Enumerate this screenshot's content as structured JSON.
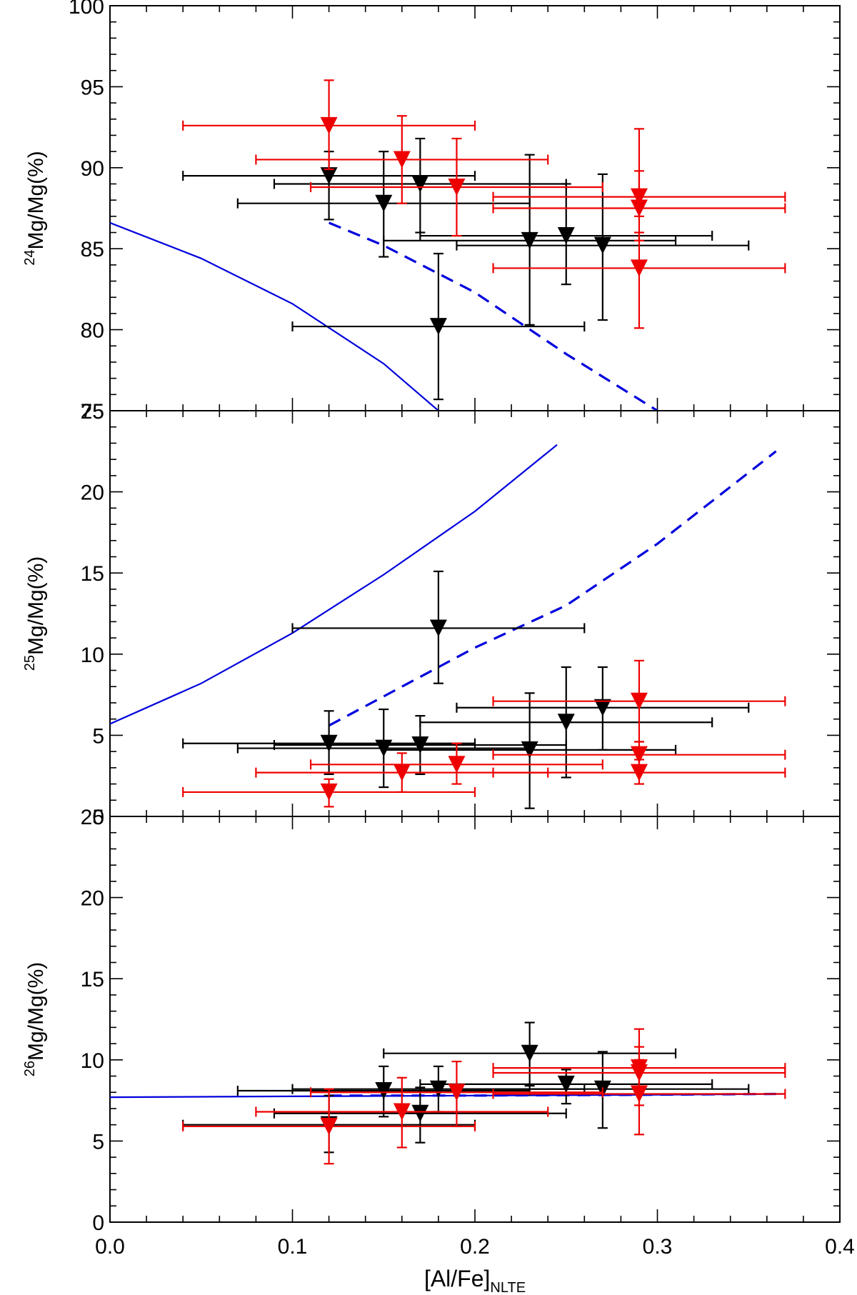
{
  "chart_data": {
    "type": "scatter",
    "xlabel": "[Al/Fe]",
    "xlabel_sub": "NLTE",
    "xlim": [
      0.0,
      0.4
    ],
    "x_ticks": [
      "0.0",
      "0.1",
      "0.2",
      "0.3",
      "0.4"
    ],
    "x_tick_values": [
      0.0,
      0.1,
      0.2,
      0.3,
      0.4
    ],
    "colors": {
      "black_series": "#000000",
      "red_series": "#ee0000",
      "model": "#0000dd"
    },
    "panels": [
      {
        "id": "mg24",
        "ylabel_sup": "24",
        "ylabel": "Mg/Mg(%)",
        "ylim": [
          75,
          100
        ],
        "y_ticks": [
          "75",
          "80",
          "85",
          "90",
          "95",
          "100"
        ],
        "y_tick_values": [
          75,
          80,
          85,
          90,
          95,
          100
        ],
        "series": [
          {
            "name": "black",
            "color": "#000000",
            "points": [
              {
                "x": 0.12,
                "y": 89.5,
                "xerr": [
                  0.04,
                  0.2
                ],
                "yerr": [
                  86.8,
                  91.0
                ]
              },
              {
                "x": 0.15,
                "y": 87.8,
                "xerr": [
                  0.07,
                  0.23
                ],
                "yerr": [
                  84.5,
                  91.0
                ]
              },
              {
                "x": 0.17,
                "y": 89.0,
                "xerr": [
                  0.09,
                  0.25
                ],
                "yerr": [
                  86.0,
                  91.8
                ]
              },
              {
                "x": 0.18,
                "y": 80.2,
                "xerr": [
                  0.1,
                  0.26
                ],
                "yerr": [
                  75.7,
                  84.7
                ]
              },
              {
                "x": 0.23,
                "y": 85.5,
                "xerr": [
                  0.15,
                  0.31
                ],
                "yerr": [
                  80.3,
                  90.8
                ]
              },
              {
                "x": 0.25,
                "y": 85.8,
                "xerr": [
                  0.17,
                  0.33
                ],
                "yerr": [
                  82.8,
                  89.0
                ]
              },
              {
                "x": 0.27,
                "y": 85.2,
                "xerr": [
                  0.19,
                  0.35
                ],
                "yerr": [
                  80.6,
                  89.6
                ]
              }
            ]
          },
          {
            "name": "red",
            "color": "#ee0000",
            "points": [
              {
                "x": 0.12,
                "y": 92.6,
                "xerr": [
                  0.04,
                  0.2
                ],
                "yerr": [
                  89.9,
                  95.4
                ]
              },
              {
                "x": 0.16,
                "y": 90.5,
                "xerr": [
                  0.08,
                  0.24
                ],
                "yerr": [
                  87.8,
                  93.2
                ]
              },
              {
                "x": 0.19,
                "y": 88.8,
                "xerr": [
                  0.11,
                  0.27
                ],
                "yerr": [
                  85.8,
                  91.8
                ]
              },
              {
                "x": 0.29,
                "y": 88.2,
                "xerr": [
                  0.21,
                  0.37
                ],
                "yerr": [
                  87.0,
                  89.8
                ]
              },
              {
                "x": 0.29,
                "y": 87.5,
                "xerr": [
                  0.21,
                  0.37
                ],
                "yerr": [
                  85.5,
                  92.4
                ]
              },
              {
                "x": 0.29,
                "y": 83.8,
                "xerr": [
                  0.21,
                  0.37
                ],
                "yerr": [
                  80.1,
                  86.0
                ]
              }
            ]
          }
        ],
        "models": [
          {
            "style": "solid",
            "points": [
              [
                0.0,
                86.6
              ],
              [
                0.05,
                84.4
              ],
              [
                0.1,
                81.6
              ],
              [
                0.15,
                77.9
              ],
              [
                0.18,
                75.0
              ]
            ]
          },
          {
            "style": "dashed",
            "points": [
              [
                0.12,
                86.6
              ],
              [
                0.15,
                85.2
              ],
              [
                0.2,
                82.3
              ],
              [
                0.25,
                78.5
              ],
              [
                0.3,
                75.0
              ]
            ]
          }
        ]
      },
      {
        "id": "mg25",
        "ylabel_sup": "25",
        "ylabel": "Mg/Mg(%)",
        "ylim": [
          0,
          25
        ],
        "y_ticks": [
          "0",
          "5",
          "10",
          "15",
          "20",
          "25"
        ],
        "y_tick_values": [
          0,
          5,
          10,
          15,
          20,
          25
        ],
        "series": [
          {
            "name": "black",
            "color": "#000000",
            "points": [
              {
                "x": 0.12,
                "y": 4.5,
                "xerr": [
                  0.04,
                  0.2
                ],
                "yerr": [
                  2.6,
                  6.5
                ]
              },
              {
                "x": 0.15,
                "y": 4.2,
                "xerr": [
                  0.07,
                  0.23
                ],
                "yerr": [
                  1.8,
                  6.6
                ]
              },
              {
                "x": 0.17,
                "y": 4.4,
                "xerr": [
                  0.09,
                  0.25
                ],
                "yerr": [
                  2.6,
                  6.2
                ]
              },
              {
                "x": 0.18,
                "y": 11.6,
                "xerr": [
                  0.1,
                  0.26
                ],
                "yerr": [
                  8.2,
                  15.1
                ]
              },
              {
                "x": 0.23,
                "y": 4.1,
                "xerr": [
                  0.15,
                  0.31
                ],
                "yerr": [
                  0.5,
                  7.6
                ]
              },
              {
                "x": 0.25,
                "y": 5.8,
                "xerr": [
                  0.17,
                  0.33
                ],
                "yerr": [
                  2.4,
                  9.2
                ]
              },
              {
                "x": 0.27,
                "y": 6.7,
                "xerr": [
                  0.19,
                  0.35
                ],
                "yerr": [
                  4.1,
                  9.2
                ]
              }
            ]
          },
          {
            "name": "red",
            "color": "#ee0000",
            "points": [
              {
                "x": 0.12,
                "y": 1.5,
                "xerr": [
                  0.04,
                  0.2
                ],
                "yerr": [
                  0.6,
                  2.3
                ]
              },
              {
                "x": 0.16,
                "y": 2.7,
                "xerr": [
                  0.08,
                  0.24
                ],
                "yerr": [
                  1.5,
                  3.9
                ]
              },
              {
                "x": 0.19,
                "y": 3.2,
                "xerr": [
                  0.11,
                  0.27
                ],
                "yerr": [
                  2.0,
                  4.5
                ]
              },
              {
                "x": 0.29,
                "y": 7.1,
                "xerr": [
                  0.21,
                  0.37
                ],
                "yerr": [
                  4.6,
                  9.6
                ]
              },
              {
                "x": 0.29,
                "y": 3.8,
                "xerr": [
                  0.21,
                  0.37
                ],
                "yerr": [
                  3.0,
                  4.6
                ]
              },
              {
                "x": 0.29,
                "y": 2.7,
                "xerr": [
                  0.21,
                  0.37
                ],
                "yerr": [
                  2.0,
                  3.5
                ]
              }
            ]
          }
        ],
        "models": [
          {
            "style": "solid",
            "points": [
              [
                0.0,
                5.7
              ],
              [
                0.05,
                8.2
              ],
              [
                0.1,
                11.3
              ],
              [
                0.15,
                14.9
              ],
              [
                0.2,
                18.8
              ],
              [
                0.245,
                22.9
              ]
            ]
          },
          {
            "style": "dashed",
            "points": [
              [
                0.12,
                5.6
              ],
              [
                0.15,
                7.4
              ],
              [
                0.2,
                10.4
              ],
              [
                0.25,
                13.0
              ],
              [
                0.3,
                16.8
              ],
              [
                0.365,
                22.5
              ]
            ]
          }
        ]
      },
      {
        "id": "mg26",
        "ylabel_sup": "26",
        "ylabel": "Mg/Mg(%)",
        "ylim": [
          0,
          25
        ],
        "y_ticks": [
          "0",
          "5",
          "10",
          "15",
          "20",
          "25"
        ],
        "y_tick_values": [
          0,
          5,
          10,
          15,
          20,
          25
        ],
        "series": [
          {
            "name": "black",
            "color": "#000000",
            "points": [
              {
                "x": 0.12,
                "y": 6.0,
                "xerr": [
                  0.04,
                  0.2
                ],
                "yerr": [
                  4.3,
                  7.8
                ]
              },
              {
                "x": 0.15,
                "y": 8.1,
                "xerr": [
                  0.07,
                  0.23
                ],
                "yerr": [
                  6.5,
                  9.6
                ]
              },
              {
                "x": 0.17,
                "y": 6.7,
                "xerr": [
                  0.09,
                  0.25
                ],
                "yerr": [
                  4.9,
                  8.3
                ]
              },
              {
                "x": 0.18,
                "y": 8.2,
                "xerr": [
                  0.1,
                  0.26
                ],
                "yerr": [
                  6.8,
                  9.6
                ]
              },
              {
                "x": 0.23,
                "y": 10.4,
                "xerr": [
                  0.15,
                  0.31
                ],
                "yerr": [
                  8.4,
                  12.3
                ]
              },
              {
                "x": 0.25,
                "y": 8.5,
                "xerr": [
                  0.17,
                  0.33
                ],
                "yerr": [
                  7.3,
                  9.4
                ]
              },
              {
                "x": 0.27,
                "y": 8.2,
                "xerr": [
                  0.19,
                  0.35
                ],
                "yerr": [
                  5.8,
                  10.5
                ]
              }
            ]
          },
          {
            "name": "red",
            "color": "#ee0000",
            "points": [
              {
                "x": 0.12,
                "y": 5.9,
                "xerr": [
                  0.04,
                  0.2
                ],
                "yerr": [
                  3.6,
                  8.2
                ]
              },
              {
                "x": 0.16,
                "y": 6.8,
                "xerr": [
                  0.08,
                  0.24
                ],
                "yerr": [
                  4.6,
                  8.9
                ]
              },
              {
                "x": 0.19,
                "y": 8.0,
                "xerr": [
                  0.11,
                  0.27
                ],
                "yerr": [
                  5.9,
                  9.9
                ]
              },
              {
                "x": 0.29,
                "y": 9.5,
                "xerr": [
                  0.21,
                  0.37
                ],
                "yerr": [
                  8.2,
                  11.9
                ]
              },
              {
                "x": 0.29,
                "y": 9.2,
                "xerr": [
                  0.21,
                  0.37
                ],
                "yerr": [
                  7.2,
                  10.8
                ]
              },
              {
                "x": 0.29,
                "y": 7.9,
                "xerr": [
                  0.21,
                  0.37
                ],
                "yerr": [
                  5.4,
                  10.0
                ]
              }
            ]
          }
        ],
        "models": [
          {
            "style": "solid",
            "points": [
              [
                0.0,
                7.7
              ],
              [
                0.1,
                7.75
              ],
              [
                0.2,
                7.8
              ],
              [
                0.3,
                7.85
              ],
              [
                0.37,
                7.9
              ]
            ]
          },
          {
            "style": "dashed",
            "points": [
              [
                0.12,
                7.8
              ],
              [
                0.2,
                7.8
              ],
              [
                0.3,
                7.85
              ],
              [
                0.365,
                7.9
              ]
            ]
          }
        ]
      }
    ]
  }
}
